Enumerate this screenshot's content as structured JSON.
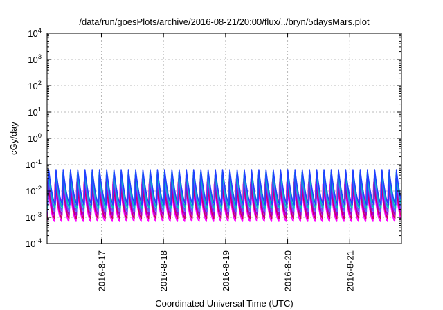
{
  "chart_data": {
    "type": "line",
    "title": "/data/run/goesPlots/archive/2016-08-21/20:00/flux/../bryn/5daysMars.plot",
    "xlabel": "Coordinated Universal Time (UTC)",
    "ylabel": "cGy/day",
    "xscale": "time",
    "xlim": [
      "2016-08-16T03:00",
      "2016-08-21T20:00"
    ],
    "x_ticks": [
      "2016-8-17",
      "2016-8-18",
      "2016-8-19",
      "2016-8-20",
      "2016-8-21"
    ],
    "yscale": "log",
    "ylim": [
      0.0001,
      10000
    ],
    "y_ticks": [
      {
        "value": 0.0001,
        "base": "10",
        "exp": "-4"
      },
      {
        "value": 0.001,
        "base": "10",
        "exp": "-3"
      },
      {
        "value": 0.01,
        "base": "10",
        "exp": "-2"
      },
      {
        "value": 0.1,
        "base": "10",
        "exp": "-1"
      },
      {
        "value": 1,
        "base": "10",
        "exp": "0"
      },
      {
        "value": 10,
        "base": "10",
        "exp": "1"
      },
      {
        "value": 100,
        "base": "10",
        "exp": "2"
      },
      {
        "value": 1000,
        "base": "10",
        "exp": "3"
      },
      {
        "value": 10000,
        "base": "10",
        "exp": "4"
      }
    ],
    "grid": true,
    "legend": "none",
    "oscillation_period_hours": 2.8,
    "series": [
      {
        "color": "#ff00ff",
        "peak": 0.018,
        "trough": 0.0007
      },
      {
        "color": "#cc0066",
        "peak": 0.022,
        "trough": 0.0009
      },
      {
        "color": "#a000d0",
        "peak": 0.03,
        "trough": 0.0012
      },
      {
        "color": "#6060ff",
        "peak": 0.04,
        "trough": 0.0016
      },
      {
        "color": "#00c0c0",
        "peak": 0.05,
        "trough": 0.0022
      },
      {
        "color": "#2040ff",
        "peak": 0.065,
        "trough": 0.003
      }
    ]
  }
}
